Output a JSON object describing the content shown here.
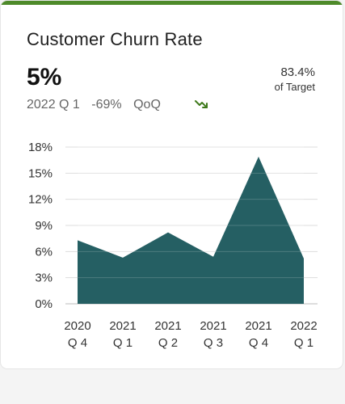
{
  "card": {
    "title": "Customer Churn Rate",
    "kpi_value": "5%",
    "period": "2022 Q 1",
    "change": "-69%",
    "change_label": "QoQ",
    "trend_icon": "trend-down-icon",
    "target_pct": "83.4%",
    "target_label": "of Target"
  },
  "colors": {
    "accent": "#4e8a2a",
    "area_fill": "#255f63",
    "trend": "#3f7a1c",
    "grid": "#dddddd"
  },
  "chart_data": {
    "type": "area",
    "title": "Customer Churn Rate",
    "categories": [
      [
        "2020",
        "Q 4"
      ],
      [
        "2021",
        "Q 1"
      ],
      [
        "2021",
        "Q 2"
      ],
      [
        "2021",
        "Q 3"
      ],
      [
        "2021",
        "Q 4"
      ],
      [
        "2022",
        "Q 1"
      ]
    ],
    "series": [
      {
        "values": [
          7.3,
          5.3,
          8.2,
          5.4,
          16.9,
          5.2
        ]
      }
    ],
    "yticks": [
      "0%",
      "3%",
      "6%",
      "9%",
      "12%",
      "15%",
      "18%"
    ],
    "ylim": [
      0,
      18
    ],
    "grid": true,
    "xlabel": "",
    "ylabel": ""
  }
}
